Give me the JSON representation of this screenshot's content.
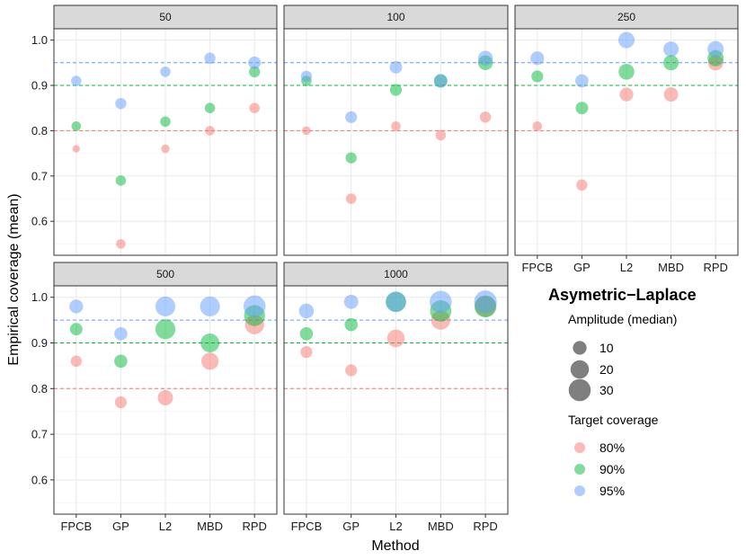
{
  "chart_data": {
    "type": "scatter",
    "facet_variable": "sample size",
    "ylabel": "Empirical coverage (mean)",
    "xlabel": "Method",
    "ylim": [
      0.525,
      1.025
    ],
    "y_ticks": [
      0.6,
      0.7,
      0.8,
      0.9,
      1.0
    ],
    "y_tick_labels": [
      "0.6",
      "0.7",
      "0.8",
      "0.9",
      "1.0"
    ],
    "categories": [
      "FPCB",
      "GP",
      "L2",
      "MBD",
      "RPD"
    ],
    "reference_lines": [
      {
        "value": 0.8,
        "color": "#F8766D"
      },
      {
        "value": 0.9,
        "color": "#00BA38"
      },
      {
        "value": 0.95,
        "color": "#619CFF"
      }
    ],
    "legend": {
      "title": "Asymetric−Laplace",
      "size_title": "Amplitude (median)",
      "size_entries": [
        {
          "label": "10",
          "value": 10
        },
        {
          "label": "20",
          "value": 20
        },
        {
          "label": "30",
          "value": 30
        }
      ],
      "color_title": "Target coverage",
      "color_entries": [
        {
          "label": "80%",
          "color": "#F8766D"
        },
        {
          "label": "90%",
          "color": "#00BA38"
        },
        {
          "label": "95%",
          "color": "#619CFF"
        }
      ]
    },
    "panels": [
      {
        "label": "50",
        "series": [
          {
            "name": "80%",
            "coverage": [
              0.76,
              0.55,
              0.76,
              0.8,
              0.85
            ],
            "amplitude": [
              2,
              4,
              3,
              4,
              5
            ]
          },
          {
            "name": "90%",
            "coverage": [
              0.81,
              0.69,
              0.82,
              0.85,
              0.93
            ],
            "amplitude": [
              4,
              5,
              5,
              5,
              6
            ]
          },
          {
            "name": "95%",
            "coverage": [
              0.91,
              0.86,
              0.93,
              0.96,
              0.95
            ],
            "amplitude": [
              5,
              6,
              5,
              6,
              8
            ]
          }
        ]
      },
      {
        "label": "100",
        "series": [
          {
            "name": "80%",
            "coverage": [
              0.8,
              0.65,
              0.81,
              0.79,
              0.83
            ],
            "amplitude": [
              3,
              5,
              4,
              5,
              6
            ]
          },
          {
            "name": "90%",
            "coverage": [
              0.91,
              0.74,
              0.89,
              0.91,
              0.95
            ],
            "amplitude": [
              5,
              6,
              7,
              9,
              12
            ]
          },
          {
            "name": "95%",
            "coverage": [
              0.92,
              0.83,
              0.94,
              0.91,
              0.96
            ],
            "amplitude": [
              6,
              7,
              8,
              10,
              12
            ]
          }
        ]
      },
      {
        "label": "250",
        "series": [
          {
            "name": "80%",
            "coverage": [
              0.81,
              0.68,
              0.88,
              0.88,
              0.95
            ],
            "amplitude": [
              4,
              6,
              10,
              11,
              13
            ]
          },
          {
            "name": "90%",
            "coverage": [
              0.92,
              0.85,
              0.93,
              0.95,
              0.96
            ],
            "amplitude": [
              7,
              8,
              14,
              13,
              15
            ]
          },
          {
            "name": "95%",
            "coverage": [
              0.96,
              0.91,
              1.0,
              0.98,
              0.98
            ],
            "amplitude": [
              10,
              9,
              15,
              13,
              15
            ]
          }
        ]
      },
      {
        "label": "500",
        "series": [
          {
            "name": "80%",
            "coverage": [
              0.86,
              0.77,
              0.78,
              0.86,
              0.94
            ],
            "amplitude": [
              6,
              7,
              13,
              17,
              22
            ]
          },
          {
            "name": "90%",
            "coverage": [
              0.93,
              0.86,
              0.93,
              0.9,
              0.96
            ],
            "amplitude": [
              8,
              9,
              24,
              21,
              27
            ]
          },
          {
            "name": "95%",
            "coverage": [
              0.98,
              0.92,
              0.98,
              0.98,
              0.98
            ],
            "amplitude": [
              10,
              9,
              24,
              24,
              30
            ]
          }
        ]
      },
      {
        "label": "1000",
        "series": [
          {
            "name": "80%",
            "coverage": [
              0.88,
              0.84,
              0.91,
              0.95,
              0.98
            ],
            "amplitude": [
              7,
              7,
              18,
              22,
              26
            ]
          },
          {
            "name": "90%",
            "coverage": [
              0.92,
              0.94,
              0.99,
              0.97,
              0.98
            ],
            "amplitude": [
              9,
              9,
              25,
              28,
              30
            ]
          },
          {
            "name": "95%",
            "coverage": [
              0.97,
              0.99,
              0.99,
              0.99,
              0.99
            ],
            "amplitude": [
              12,
              11,
              25,
              30,
              32
            ]
          }
        ]
      }
    ]
  }
}
